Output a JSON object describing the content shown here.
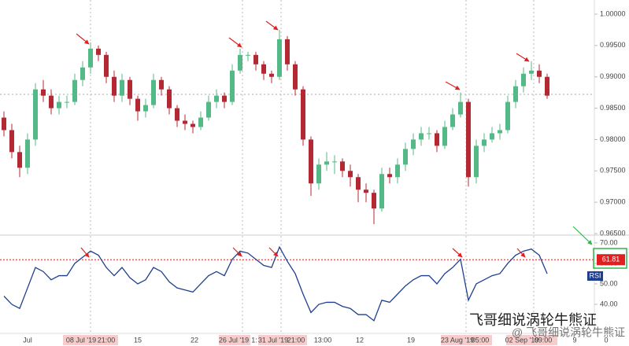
{
  "chart_data": {
    "type": "candlestick",
    "up_color": "#53b987",
    "down_color": "#b22833",
    "open": [
      0.9835,
      0.9815,
      0.978,
      0.9755,
      0.98,
      0.988,
      0.987,
      0.985,
      0.986,
      0.986,
      0.9895,
      0.9915,
      0.9945,
      0.9935,
      0.99,
      0.987,
      0.9895,
      0.9865,
      0.9845,
      0.9855,
      0.9895,
      0.988,
      0.985,
      0.983,
      0.9825,
      0.982,
      0.9835,
      0.986,
      0.987,
      0.986,
      0.991,
      0.9935,
      0.9935,
      0.992,
      0.9905,
      0.99,
      0.996,
      0.992,
      0.988,
      0.98,
      0.973,
      0.976,
      0.9765,
      0.9765,
      0.975,
      0.974,
      0.972,
      0.9715,
      0.969,
      0.9745,
      0.974,
      0.976,
      0.9785,
      0.98,
      0.981,
      0.981,
      0.979,
      0.982,
      0.984,
      0.986,
      0.974,
      0.979,
      0.98,
      0.981,
      0.9815,
      0.986,
      0.9885,
      0.9905,
      0.991,
      0.99
    ],
    "high": [
      0.9845,
      0.9825,
      0.979,
      0.981,
      0.989,
      0.9895,
      0.988,
      0.987,
      0.987,
      0.9905,
      0.9925,
      0.9955,
      0.995,
      0.994,
      0.991,
      0.9905,
      0.99,
      0.987,
      0.9865,
      0.9905,
      0.99,
      0.9885,
      0.9855,
      0.984,
      0.983,
      0.9845,
      0.987,
      0.988,
      0.9875,
      0.992,
      0.9945,
      0.994,
      0.994,
      0.9925,
      0.991,
      0.9975,
      0.9965,
      0.9925,
      0.9885,
      0.9805,
      0.977,
      0.978,
      0.9775,
      0.977,
      0.976,
      0.9745,
      0.973,
      0.972,
      0.9755,
      0.9755,
      0.977,
      0.9795,
      0.981,
      0.982,
      0.982,
      0.9815,
      0.983,
      0.985,
      0.9875,
      0.9865,
      0.98,
      0.981,
      0.982,
      0.9825,
      0.987,
      0.9895,
      0.9915,
      0.9925,
      0.992,
      0.9905
    ],
    "low": [
      0.9805,
      0.977,
      0.974,
      0.9745,
      0.979,
      0.986,
      0.984,
      0.984,
      0.985,
      0.9855,
      0.9885,
      0.9905,
      0.9925,
      0.989,
      0.986,
      0.986,
      0.9855,
      0.983,
      0.9835,
      0.985,
      0.987,
      0.984,
      0.982,
      0.9815,
      0.981,
      0.9815,
      0.983,
      0.985,
      0.985,
      0.9855,
      0.9905,
      0.9925,
      0.991,
      0.9895,
      0.989,
      0.9895,
      0.991,
      0.987,
      0.979,
      0.971,
      0.972,
      0.975,
      0.9745,
      0.974,
      0.9725,
      0.97,
      0.97,
      0.9665,
      0.9685,
      0.973,
      0.973,
      0.975,
      0.9775,
      0.979,
      0.98,
      0.978,
      0.9785,
      0.9815,
      0.9835,
      0.9725,
      0.973,
      0.978,
      0.9795,
      0.98,
      0.981,
      0.985,
      0.9875,
      0.9895,
      0.989,
      0.9865
    ],
    "close": [
      0.9815,
      0.978,
      0.9755,
      0.98,
      0.988,
      0.987,
      0.985,
      0.986,
      0.986,
      0.9895,
      0.9915,
      0.9945,
      0.9935,
      0.99,
      0.987,
      0.9895,
      0.9865,
      0.9845,
      0.9855,
      0.9895,
      0.988,
      0.985,
      0.983,
      0.9825,
      0.982,
      0.9835,
      0.986,
      0.987,
      0.986,
      0.991,
      0.9935,
      0.9935,
      0.992,
      0.9905,
      0.99,
      0.996,
      0.992,
      0.988,
      0.98,
      0.973,
      0.976,
      0.9765,
      0.9765,
      0.975,
      0.974,
      0.972,
      0.9715,
      0.969,
      0.9745,
      0.974,
      0.976,
      0.9785,
      0.98,
      0.981,
      0.981,
      0.979,
      0.982,
      0.984,
      0.986,
      0.974,
      0.979,
      0.98,
      0.981,
      0.9815,
      0.986,
      0.9885,
      0.9905,
      0.991,
      0.99,
      0.987
    ],
    "ylim": [
      0.96475,
      1.00226
    ],
    "yticks": [
      {
        "value": 1.0,
        "label": "1.00000"
      },
      {
        "value": 0.995,
        "label": "0.99500"
      },
      {
        "value": 0.99,
        "label": "0.99000"
      },
      {
        "value": 0.985,
        "label": "0.98500"
      },
      {
        "value": 0.98,
        "label": "0.98000"
      },
      {
        "value": 0.975,
        "label": "0.97500"
      },
      {
        "value": 0.97,
        "label": "0.97000"
      },
      {
        "value": 0.965,
        "label": "0.96500"
      }
    ],
    "rsi": {
      "name": "RSI",
      "color": "#1e3f8f",
      "values": [
        44,
        40,
        38,
        48,
        58,
        56,
        52,
        54,
        54,
        60,
        63,
        66,
        64,
        58,
        54,
        58,
        53,
        50,
        52,
        58,
        56,
        51,
        48,
        47,
        46,
        50,
        54,
        56,
        54,
        62,
        66,
        65,
        62,
        59,
        58,
        68,
        61,
        55,
        45,
        36,
        40,
        41,
        41,
        39,
        38,
        35,
        35,
        32,
        42,
        41,
        45,
        49,
        52,
        54,
        54,
        50,
        55,
        58,
        62,
        42,
        50,
        52,
        54,
        55,
        60,
        64,
        66,
        67,
        64,
        55
      ],
      "level": 61.81,
      "ylim": [
        25.8,
        73.8
      ],
      "yticks": [
        {
          "value": 70,
          "label": "70.00"
        },
        {
          "value": 60,
          "label": "60.00"
        },
        {
          "value": 50,
          "label": "50.00"
        },
        {
          "value": 40,
          "label": "40.00"
        }
      ]
    },
    "x_labels": [
      "Jul",
      "08 Jul '19",
      "21:00",
      "15",
      "22",
      "26 Jul '19",
      "1:",
      "31 Jul '19",
      "21:00",
      "13:00",
      "12",
      "19",
      "23 Aug '19",
      "05:00",
      "02 Sep '19",
      "09:00",
      "9",
      "0"
    ],
    "watermark": [
      "飞哥细说涡轮牛熊证",
      "@ 飞哥细说涡轮牛熊证"
    ]
  }
}
